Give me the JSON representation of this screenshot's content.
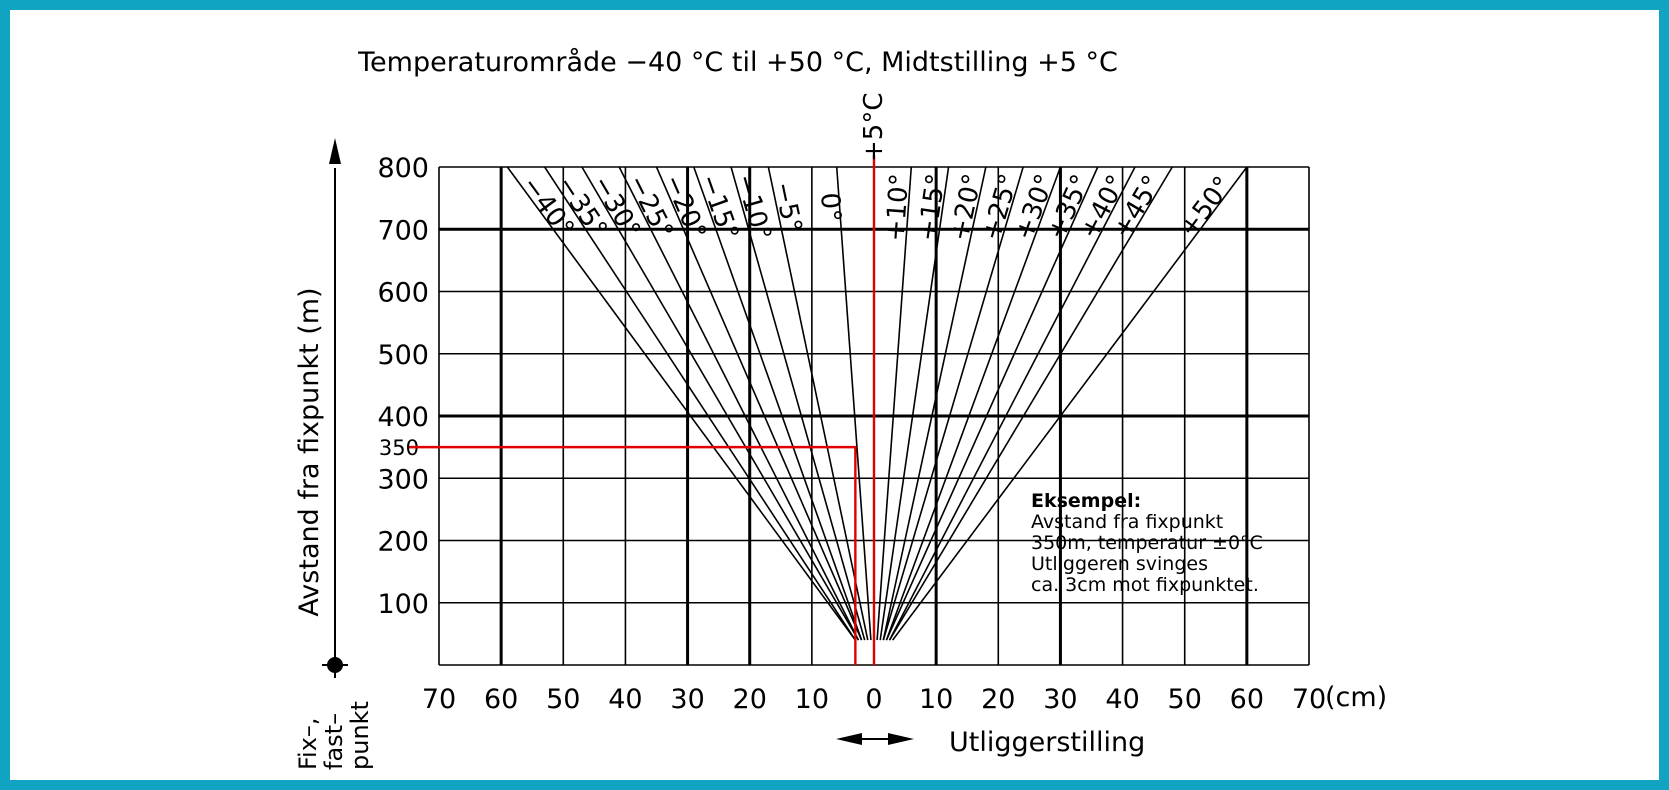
{
  "chart_data": {
    "type": "line",
    "title": "Temperaturområde −40 °C til +50 °C, Midtstilling +5 °C",
    "xlabel": "Utliggerstilling",
    "x_unit": "(cm)",
    "ylabel": "Avstand fra fixpunkt (m)",
    "xlim": [
      -70,
      70
    ],
    "ylim": [
      0,
      800
    ],
    "x_tick_labels": [
      "70",
      "60",
      "50",
      "40",
      "30",
      "20",
      "10",
      "0",
      "10",
      "20",
      "30",
      "40",
      "50",
      "60",
      "70"
    ],
    "y_tick_labels": [
      "100",
      "200",
      "300",
      "400",
      "500",
      "600",
      "700",
      "800"
    ],
    "y_extra_tick_label": "350",
    "midpoint_label": "+5°C",
    "origin_label": [
      "Fix–,",
      "fast–",
      "punkt"
    ],
    "grid": true,
    "series": [
      {
        "name": "−40°",
        "temp": -40,
        "points": [
          [
            -3,
            40
          ],
          [
            -59,
            800
          ]
        ]
      },
      {
        "name": "−35°",
        "temp": -35,
        "points": [
          [
            -3,
            40
          ],
          [
            -53,
            800
          ]
        ]
      },
      {
        "name": "−30°",
        "temp": -30,
        "points": [
          [
            -2.5,
            40
          ],
          [
            -47,
            800
          ]
        ]
      },
      {
        "name": "−25°",
        "temp": -25,
        "points": [
          [
            -2.5,
            40
          ],
          [
            -41,
            800
          ]
        ]
      },
      {
        "name": "−20°",
        "temp": -20,
        "points": [
          [
            -2,
            40
          ],
          [
            -35,
            800
          ]
        ]
      },
      {
        "name": "−15°",
        "temp": -15,
        "points": [
          [
            -2,
            40
          ],
          [
            -29,
            800
          ]
        ]
      },
      {
        "name": "−10°",
        "temp": -10,
        "points": [
          [
            -1.5,
            40
          ],
          [
            -23,
            800
          ]
        ]
      },
      {
        "name": "−5°",
        "temp": -5,
        "points": [
          [
            -1,
            40
          ],
          [
            -17,
            800
          ]
        ]
      },
      {
        "name": "0°",
        "temp": 0,
        "points": [
          [
            -0.5,
            40
          ],
          [
            -6,
            800
          ]
        ]
      },
      {
        "name": "+10°",
        "temp": 10,
        "points": [
          [
            0.5,
            40
          ],
          [
            6,
            800
          ]
        ]
      },
      {
        "name": "+15°",
        "temp": 15,
        "points": [
          [
            1,
            40
          ],
          [
            12,
            800
          ]
        ]
      },
      {
        "name": "+20°",
        "temp": 20,
        "points": [
          [
            1.5,
            40
          ],
          [
            18,
            800
          ]
        ]
      },
      {
        "name": "+25°",
        "temp": 25,
        "points": [
          [
            1.5,
            40
          ],
          [
            24,
            800
          ]
        ]
      },
      {
        "name": "+30°",
        "temp": 30,
        "points": [
          [
            2,
            40
          ],
          [
            30,
            800
          ]
        ]
      },
      {
        "name": "+35°",
        "temp": 35,
        "points": [
          [
            2,
            40
          ],
          [
            36,
            800
          ]
        ]
      },
      {
        "name": "+40°",
        "temp": 40,
        "points": [
          [
            2.5,
            40
          ],
          [
            42,
            800
          ]
        ]
      },
      {
        "name": "+45°",
        "temp": 45,
        "points": [
          [
            2.5,
            40
          ],
          [
            48,
            800
          ]
        ]
      },
      {
        "name": "+50°",
        "temp": 50,
        "points": [
          [
            3,
            40
          ],
          [
            60,
            800
          ]
        ]
      }
    ],
    "example": {
      "distance_m": 350,
      "offset_cm": -3,
      "lines": [
        "Eksempel:",
        "Avstand fra fixpunkt",
        "350m, temperatur ±0°C",
        "Utliggeren svinges",
        "ca. 3cm mot fixpunktet."
      ]
    },
    "colors": {
      "frame": "#10a3c2",
      "highlight": "#e00000",
      "ink": "#000000"
    }
  }
}
